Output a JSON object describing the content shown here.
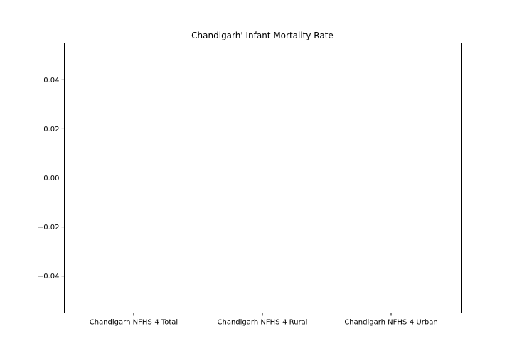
{
  "chart_data": {
    "type": "bar",
    "title": "Chandigarh' Infant Mortality Rate",
    "xlabel": "",
    "ylabel": "",
    "categories": [
      "Chandigarh NFHS-4 Total",
      "Chandigarh NFHS-4 Rural",
      "Chandigarh NFHS-4 Urban"
    ],
    "values": [
      null,
      null,
      null
    ],
    "ylim": [
      -0.055,
      0.055
    ],
    "yticks": [
      -0.04,
      -0.02,
      0.0,
      0.02,
      0.04
    ],
    "ytick_labels": [
      "−0.04",
      "−0.02",
      "0.00",
      "0.02",
      "0.04"
    ],
    "grid": false,
    "legend": "none"
  }
}
